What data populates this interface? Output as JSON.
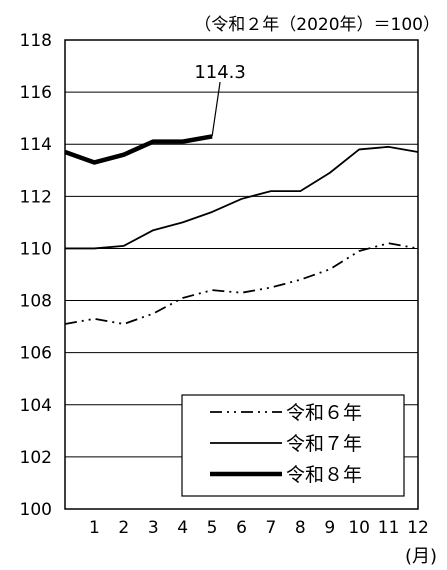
{
  "chart_data": {
    "type": "line",
    "note": "（令和２年（2020年）＝100）",
    "x_unit_label": "(月)",
    "x_ticks": [
      "1",
      "2",
      "3",
      "4",
      "5",
      "6",
      "7",
      "8",
      "9",
      "10",
      "11",
      "12"
    ],
    "y_ticks": [
      "100",
      "102",
      "104",
      "106",
      "108",
      "110",
      "112",
      "114",
      "116",
      "118"
    ],
    "ylim": [
      100,
      118
    ],
    "xlim": [
      0,
      12
    ],
    "grid": true,
    "legend_position": "bottom-right",
    "annotation": {
      "text": "114.3",
      "series": "令和８年",
      "x": 5,
      "y": 114.3
    },
    "series": [
      {
        "name": "令和６年",
        "style": "dash-dot-dot",
        "x": [
          0,
          1,
          2,
          3,
          4,
          5,
          6,
          7,
          8,
          9,
          10,
          11,
          12
        ],
        "values": [
          107.1,
          107.3,
          107.1,
          107.5,
          108.1,
          108.4,
          108.3,
          108.5,
          108.8,
          109.2,
          109.9,
          110.2,
          110.0
        ]
      },
      {
        "name": "令和７年",
        "style": "thin",
        "x": [
          0,
          1,
          2,
          3,
          4,
          5,
          6,
          7,
          8,
          9,
          10,
          11,
          12
        ],
        "values": [
          110.0,
          110.0,
          110.1,
          110.7,
          111.0,
          111.4,
          111.9,
          112.2,
          112.2,
          112.9,
          113.8,
          113.9,
          113.7
        ]
      },
      {
        "name": "令和８年",
        "style": "thick",
        "x": [
          0,
          1,
          2,
          3,
          4,
          5
        ],
        "values": [
          113.7,
          113.3,
          113.6,
          114.1,
          114.1,
          114.3
        ]
      }
    ]
  }
}
